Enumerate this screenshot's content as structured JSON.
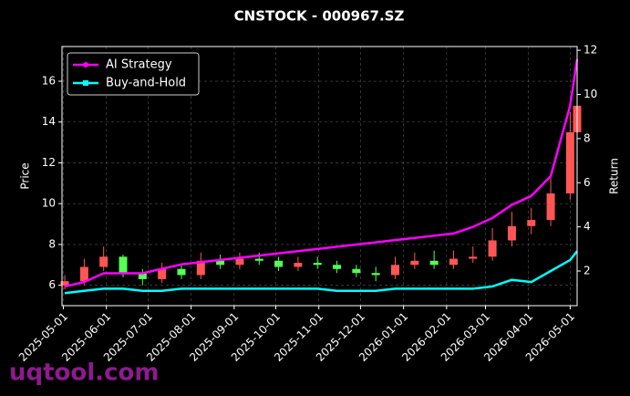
{
  "chart_data": {
    "type": "candlestick",
    "title": "CNSTOCK - 000967.SZ",
    "x": [
      "2025-05-02",
      "2025-05-16",
      "2025-05-30",
      "2025-06-13",
      "2025-06-27",
      "2025-07-11",
      "2025-07-25",
      "2025-08-08",
      "2025-08-22",
      "2025-09-05",
      "2025-09-19",
      "2025-10-03",
      "2025-10-17",
      "2025-10-31",
      "2025-11-14",
      "2025-11-28",
      "2025-12-12",
      "2025-12-26",
      "2026-01-09",
      "2026-01-23",
      "2026-02-06",
      "2026-02-20",
      "2026-03-06",
      "2026-03-20",
      "2026-04-03",
      "2026-04-17",
      "2026-05-01",
      "2026-05-06"
    ],
    "open": [
      6.0,
      6.2,
      6.9,
      7.4,
      6.6,
      6.3,
      6.8,
      6.5,
      7.2,
      7.0,
      7.3,
      7.2,
      6.9,
      7.1,
      7.0,
      6.8,
      6.6,
      6.5,
      7.0,
      7.2,
      7.0,
      7.3,
      7.4,
      8.2,
      8.9,
      9.2,
      10.5,
      13.5
    ],
    "high": [
      6.5,
      7.3,
      7.9,
      7.5,
      6.8,
      7.1,
      7.0,
      7.6,
      7.5,
      7.6,
      7.6,
      7.4,
      7.4,
      7.4,
      7.2,
      7.0,
      6.9,
      7.4,
      7.6,
      7.7,
      7.7,
      7.9,
      8.8,
      9.6,
      9.8,
      11.5,
      14.5,
      15.5
    ],
    "low": [
      5.8,
      6.0,
      6.7,
      6.4,
      6.0,
      6.1,
      6.3,
      6.3,
      6.8,
      6.8,
      7.0,
      6.7,
      6.7,
      6.8,
      6.6,
      6.4,
      6.2,
      6.3,
      6.8,
      6.8,
      6.8,
      7.1,
      7.2,
      7.9,
      8.5,
      8.9,
      10.2,
      13.0
    ],
    "close": [
      6.2,
      6.9,
      7.4,
      6.6,
      6.3,
      6.8,
      6.5,
      7.2,
      7.0,
      7.3,
      7.2,
      6.9,
      7.1,
      7.0,
      6.8,
      6.6,
      6.5,
      7.0,
      7.2,
      7.0,
      7.3,
      7.4,
      8.2,
      8.9,
      9.2,
      10.5,
      13.5,
      14.8
    ],
    "up_color": "#ff5555",
    "down_color": "#55ff55",
    "series": [
      {
        "name": "AI Strategy",
        "color": "#ff00ff",
        "axis": "y2",
        "marker": "circle",
        "values": [
          1.3,
          1.5,
          1.9,
          1.9,
          1.9,
          2.1,
          2.3,
          2.4,
          2.5,
          2.6,
          2.7,
          2.8,
          2.9,
          3.0,
          3.1,
          3.2,
          3.3,
          3.4,
          3.5,
          3.6,
          3.7,
          4.0,
          4.4,
          5.0,
          5.4,
          6.3,
          9.5,
          11.6
        ]
      },
      {
        "name": "Buy-and-Hold",
        "color": "#00ffff",
        "axis": "y2",
        "marker": "square",
        "values": [
          1.0,
          1.1,
          1.2,
          1.2,
          1.1,
          1.1,
          1.2,
          1.2,
          1.2,
          1.2,
          1.2,
          1.2,
          1.2,
          1.2,
          1.1,
          1.1,
          1.1,
          1.2,
          1.2,
          1.2,
          1.2,
          1.2,
          1.3,
          1.6,
          1.5,
          2.0,
          2.5,
          2.9
        ]
      }
    ],
    "xlim": [
      "2025-04-30",
      "2026-05-06"
    ],
    "xticks": [
      "2025-05-01",
      "2025-06-01",
      "2025-07-01",
      "2025-08-01",
      "2025-09-01",
      "2025-10-01",
      "2025-11-01",
      "2025-12-01",
      "2026-01-01",
      "2026-02-01",
      "2026-03-01",
      "2026-04-01",
      "2026-05-01"
    ],
    "ylim": [
      5.0,
      17.7
    ],
    "yticks": [
      6,
      8,
      10,
      12,
      14,
      16
    ],
    "y2lim": [
      0.43,
      12.17
    ],
    "y2ticks": [
      2,
      4,
      6,
      8,
      10,
      12
    ],
    "ylabel": "Price",
    "y2label": "Return",
    "grid": true,
    "legend": "upper left",
    "watermark": "uqtool.com"
  }
}
